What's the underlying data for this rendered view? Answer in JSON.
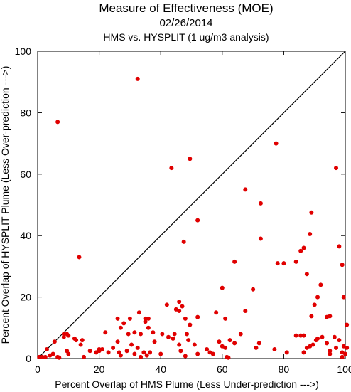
{
  "chart_data": {
    "type": "scatter",
    "title": "Measure of Effectiveness (MOE)",
    "subtitle_date": "02/26/2014",
    "subtitle": "HMS vs. HYSPLIT  (1 ug/m3 analysis)",
    "xlabel": "Percent Overlap of HMS Plume (Less Under-prediction --->)",
    "ylabel": "Percent Overlap of HYSPLIT Plume (Less Over-prediction --->)",
    "xlim": [
      0,
      100
    ],
    "ylim": [
      0,
      100
    ],
    "xticks": [
      "0",
      "20",
      "40",
      "60",
      "80",
      "100"
    ],
    "yticks": [
      "0",
      "20",
      "40",
      "60",
      "80",
      "100"
    ],
    "reference_line": "y = x",
    "grid": false,
    "marker_color": "#e00000",
    "points": [
      [
        6.5,
        77.0
      ],
      [
        32.5,
        91.0
      ],
      [
        13.5,
        33.0
      ],
      [
        43.5,
        62.0
      ],
      [
        49.5,
        65.0
      ],
      [
        52.0,
        45.0
      ],
      [
        47.5,
        38.0
      ],
      [
        67.5,
        55.0
      ],
      [
        77.5,
        70.0
      ],
      [
        72.5,
        50.5
      ],
      [
        72.5,
        39.0
      ],
      [
        97.0,
        62.0
      ],
      [
        89.0,
        47.5
      ],
      [
        88.5,
        40.5
      ],
      [
        86.5,
        36.0
      ],
      [
        85.5,
        35.0
      ],
      [
        84.0,
        31.5
      ],
      [
        87.5,
        27.5
      ],
      [
        78.0,
        31.0
      ],
      [
        80.0,
        31.0
      ],
      [
        64.0,
        31.5
      ],
      [
        98.0,
        36.5
      ],
      [
        99.0,
        30.5
      ],
      [
        91.0,
        20.0
      ],
      [
        92.0,
        24.0
      ],
      [
        70.0,
        22.5
      ],
      [
        60.0,
        23.0
      ],
      [
        99.5,
        20.0
      ],
      [
        90.0,
        17.5
      ],
      [
        94.0,
        13.5
      ],
      [
        95.0,
        13.8
      ],
      [
        89.0,
        13.8
      ],
      [
        67.5,
        15.5
      ],
      [
        58.0,
        15.0
      ],
      [
        61.0,
        13.0
      ],
      [
        52.0,
        13.5
      ],
      [
        48.0,
        13.0
      ],
      [
        46.0,
        18.5
      ],
      [
        45.0,
        16.0
      ],
      [
        46.0,
        15.5
      ],
      [
        42.0,
        17.5
      ],
      [
        47.0,
        17.0
      ],
      [
        36.0,
        13.0
      ],
      [
        35.0,
        13.0
      ],
      [
        33.0,
        15.0
      ],
      [
        30.0,
        13.0
      ],
      [
        26.0,
        13.0
      ],
      [
        28.0,
        11.5
      ],
      [
        27.0,
        10.0
      ],
      [
        49.5,
        11.0
      ],
      [
        48.5,
        8.0
      ],
      [
        44.5,
        8.0
      ],
      [
        40.5,
        8.0
      ],
      [
        37.5,
        8.5
      ],
      [
        36.0,
        10.0
      ],
      [
        35.0,
        12.0
      ],
      [
        33.5,
        8.0
      ],
      [
        31.5,
        8.5
      ],
      [
        29.5,
        8.0
      ],
      [
        26.0,
        5.5
      ],
      [
        22.0,
        8.5
      ],
      [
        20.0,
        2.5
      ],
      [
        21.0,
        3.0
      ],
      [
        23.0,
        2.0
      ],
      [
        24.5,
        3.5
      ],
      [
        26.5,
        2.0
      ],
      [
        27.0,
        1.0
      ],
      [
        29.0,
        2.5
      ],
      [
        30.5,
        4.5
      ],
      [
        31.5,
        1.5
      ],
      [
        32.5,
        3.5
      ],
      [
        33.5,
        0.5
      ],
      [
        34.5,
        2.0
      ],
      [
        35.5,
        1.0
      ],
      [
        36.5,
        2.0
      ],
      [
        38.0,
        5.5
      ],
      [
        40.0,
        1.5
      ],
      [
        42.5,
        7.0
      ],
      [
        44.0,
        6.5
      ],
      [
        46.0,
        4.5
      ],
      [
        46.5,
        2.5
      ],
      [
        49.0,
        6.0
      ],
      [
        51.0,
        4.5
      ],
      [
        52.0,
        1.5
      ],
      [
        55.0,
        3.0
      ],
      [
        56.0,
        2.0
      ],
      [
        57.0,
        1.5
      ],
      [
        59.0,
        5.5
      ],
      [
        60.0,
        4.0
      ],
      [
        61.0,
        3.5
      ],
      [
        61.5,
        0.5
      ],
      [
        62.5,
        6.0
      ],
      [
        64.0,
        5.0
      ],
      [
        66.0,
        8.0
      ],
      [
        71.0,
        3.5
      ],
      [
        72.0,
        5.0
      ],
      [
        77.0,
        3.0
      ],
      [
        81.0,
        2.0
      ],
      [
        84.0,
        7.5
      ],
      [
        85.5,
        7.5
      ],
      [
        86.5,
        7.5
      ],
      [
        86.5,
        2.0
      ],
      [
        87.5,
        3.5
      ],
      [
        88.5,
        4.0
      ],
      [
        89.5,
        4.5
      ],
      [
        90.5,
        6.0
      ],
      [
        91.0,
        6.5
      ],
      [
        92.5,
        7.0
      ],
      [
        94.0,
        5.0
      ],
      [
        95.0,
        2.5
      ],
      [
        96.5,
        7.0
      ],
      [
        97.0,
        3.5
      ],
      [
        98.0,
        6.0
      ],
      [
        99.0,
        2.0
      ],
      [
        99.5,
        4.0
      ],
      [
        100.0,
        1.5
      ],
      [
        100.5,
        3.5
      ],
      [
        100.5,
        11.0
      ],
      [
        99.0,
        0.5
      ],
      [
        95.0,
        1.5
      ],
      [
        0.5,
        0.5
      ],
      [
        1.5,
        0.5
      ],
      [
        2.5,
        0.5
      ],
      [
        3.0,
        3.0
      ],
      [
        4.0,
        1.0
      ],
      [
        5.0,
        1.5
      ],
      [
        5.5,
        5.5
      ],
      [
        6.5,
        0.5
      ],
      [
        7.0,
        0.3
      ],
      [
        8.5,
        7.0
      ],
      [
        8.5,
        8.0
      ],
      [
        9.5,
        8.0
      ],
      [
        10.0,
        7.5
      ],
      [
        9.5,
        2.5
      ],
      [
        10.0,
        1.5
      ],
      [
        12.0,
        6.5
      ],
      [
        12.5,
        6.0
      ],
      [
        14.0,
        4.5
      ],
      [
        14.5,
        6.0
      ],
      [
        17.0,
        2.5
      ],
      [
        19.0,
        2.0
      ],
      [
        20.0,
        3.0
      ],
      [
        15.0,
        0.5
      ],
      [
        62.0,
        0.3
      ],
      [
        48.0,
        0.8
      ]
    ]
  }
}
